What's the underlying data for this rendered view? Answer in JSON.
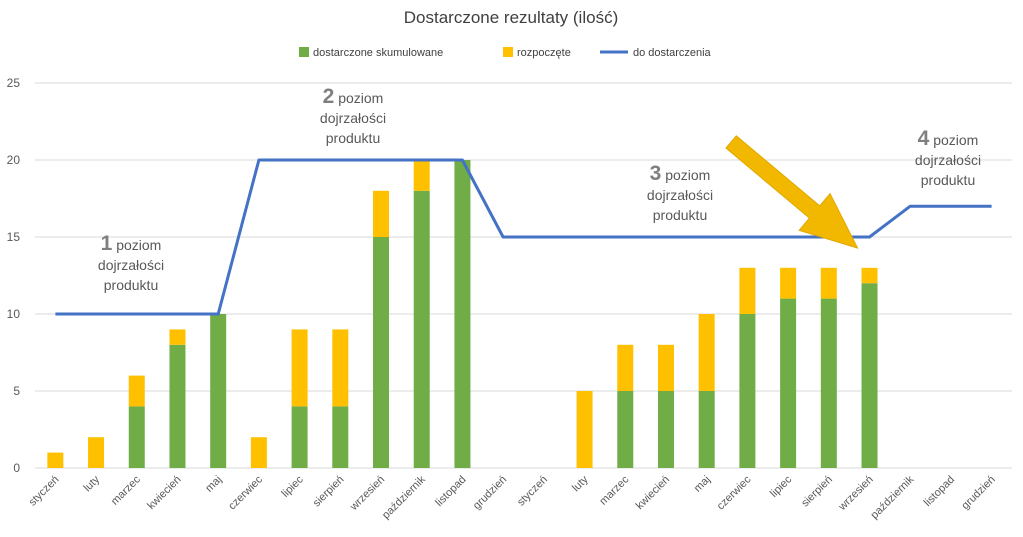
{
  "chart_data": {
    "type": "bar",
    "title": "Dostarczone rezultaty (ilość)",
    "ylim": [
      0,
      25
    ],
    "yticks": [
      0,
      5,
      10,
      15,
      20,
      25
    ],
    "grid": true,
    "legend_position": "top",
    "categories": [
      "styczeń",
      "luty",
      "marzec",
      "kwiecień",
      "maj",
      "czerwiec",
      "lipiec",
      "sierpień",
      "wrzesień",
      "październik",
      "listopad",
      "grudzień",
      "styczeń",
      "luty",
      "marzec",
      "kwiecień",
      "maj",
      "czerwiec",
      "lipiec",
      "sierpień",
      "wrzesień",
      "październik",
      "listopad",
      "grudzień"
    ],
    "series": [
      {
        "name": "dostarczone skumulowane",
        "type": "stacked-bar",
        "color": "#70ad47",
        "values": [
          0,
          0,
          4,
          8,
          10,
          0,
          4,
          4,
          15,
          18,
          20,
          0,
          0,
          0,
          5,
          5,
          5,
          10,
          11,
          11,
          12,
          0,
          0,
          0
        ]
      },
      {
        "name": "rozpoczęte",
        "type": "stacked-bar",
        "color": "#ffc000",
        "values": [
          1,
          2,
          2,
          1,
          0,
          2,
          5,
          5,
          3,
          2,
          0,
          0,
          0,
          5,
          3,
          3,
          5,
          3,
          2,
          2,
          1,
          0,
          0,
          0
        ]
      },
      {
        "name": "do dostarczenia",
        "type": "line",
        "color": "#4472c4",
        "values": [
          10,
          10,
          10,
          10,
          10,
          20,
          20,
          20,
          20,
          20,
          20,
          15,
          15,
          15,
          15,
          15,
          15,
          15,
          15,
          15,
          15,
          17,
          17,
          17
        ]
      }
    ],
    "annotations": [
      {
        "number": "1",
        "lines": [
          "poziom",
          "dojrzałości",
          "produktu"
        ]
      },
      {
        "number": "2",
        "lines": [
          "poziom",
          "dojrzałości",
          "produktu"
        ]
      },
      {
        "number": "3",
        "lines": [
          "poziom",
          "dojrzałości",
          "produktu"
        ]
      },
      {
        "number": "4",
        "lines": [
          "poziom",
          "dojrzałości",
          "produktu"
        ]
      }
    ],
    "arrow": {
      "color": "#f2b800",
      "points_to_category_index": 20
    }
  }
}
